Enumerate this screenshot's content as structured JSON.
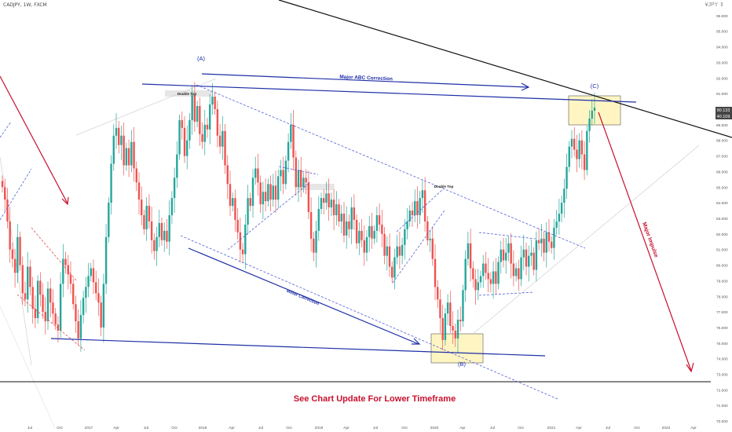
{
  "header": {
    "symbol": "CADJPY, 1W, FXCM",
    "tool_label": "¥JPY ⇕"
  },
  "price_badges": {
    "current": "90.133",
    "secondary": "40.109"
  },
  "annotations": {
    "wave_a": "(A)",
    "wave_b": "(B)",
    "wave_c": "(C)",
    "major_abc": "Major ABC Correction",
    "minor_correction": "Minor Correction",
    "major_impulse": "Major Impulse",
    "double_top_1": "Double Top",
    "double_top_2": "Double Top",
    "footer": "See Chart Update For Lower Timeframe"
  },
  "colors": {
    "bull": "#26a69a",
    "bear": "#ef5350",
    "blue": "#1f2fa8",
    "red": "#c8102e",
    "box": "#fff5c2"
  },
  "chart_data": {
    "type": "candlestick",
    "x_ticks": [
      "Jul",
      "Oct",
      "2017",
      "Apr",
      "Jul",
      "Oct",
      "2018",
      "Apr",
      "Jul",
      "Oct",
      "2019",
      "Apr",
      "Jul",
      "Oct",
      "2020",
      "Apr",
      "Jul",
      "Oct",
      "2021",
      "Apr",
      "Jul",
      "Oct",
      "2022",
      "Apr"
    ],
    "y_ticks": [
      "70.000",
      "71.000",
      "72.000",
      "73.000",
      "74.000",
      "75.000",
      "76.000",
      "77.000",
      "78.000",
      "79.000",
      "80.000",
      "81.000",
      "82.000",
      "83.000",
      "84.000",
      "85.000",
      "86.000",
      "87.000",
      "88.000",
      "89.000",
      "90.000",
      "91.000",
      "92.000",
      "93.000",
      "94.000",
      "95.000",
      "96.000"
    ],
    "ylim": [
      69.3,
      97.0
    ],
    "closes": [
      85.0,
      84.2,
      82.8,
      81.0,
      80.4,
      79.5,
      81.8,
      80.0,
      78.2,
      77.8,
      79.9,
      78.6,
      77.2,
      76.6,
      79.0,
      78.1,
      77.0,
      76.4,
      78.5,
      77.6,
      76.9,
      76.2,
      75.8,
      78.8,
      80.4,
      80.0,
      79.4,
      78.8,
      77.5,
      76.4,
      75.3,
      76.8,
      77.9,
      78.6,
      79.3,
      79.8,
      78.9,
      78.2,
      77.6,
      76.0,
      78.8,
      81.8,
      84.0,
      86.5,
      88.3,
      88.8,
      87.7,
      88.3,
      86.4,
      87.5,
      86.4,
      87.9,
      86.2,
      85.3,
      84.2,
      83.2,
      82.3,
      83.8,
      82.8,
      81.6,
      80.9,
      81.8,
      82.7,
      81.6,
      82.2,
      81.5,
      83.2,
      84.3,
      85.6,
      87.1,
      89.3,
      88.8,
      87.0,
      88.0,
      89.3,
      90.9,
      89.2,
      90.2,
      88.4,
      87.9,
      89.0,
      88.7,
      90.3,
      90.8,
      90.0,
      88.3,
      87.6,
      88.6,
      86.4,
      85.2,
      83.8,
      84.3,
      82.9,
      82.1,
      81.0,
      80.7,
      82.6,
      84.3,
      83.8,
      85.6,
      86.2,
      85.3,
      83.9,
      84.7,
      84.1,
      85.2,
      84.2,
      85.1,
      84.2,
      85.7,
      86.1,
      85.2,
      86.7,
      87.9,
      89.0,
      86.9,
      85.0,
      86.1,
      85.0,
      85.6,
      85.3,
      83.4,
      81.7,
      80.8,
      82.2,
      83.6,
      84.3,
      84.0,
      84.6,
      83.7,
      84.2,
      83.2,
      83.9,
      82.8,
      83.3,
      81.9,
      82.8,
      82.3,
      83.7,
      82.9,
      81.4,
      82.2,
      81.6,
      80.8,
      81.8,
      82.5,
      81.7,
      82.2,
      83.2,
      82.6,
      82.0,
      80.6,
      81.2,
      79.9,
      79.2,
      80.5,
      81.2,
      80.6,
      81.3,
      82.3,
      82.8,
      83.5,
      83.2,
      84.1,
      83.2,
      84.3,
      84.8,
      82.8,
      81.6,
      81.7,
      80.4,
      78.6,
      77.8,
      76.6,
      75.2,
      76.9,
      77.6,
      76.1,
      75.8,
      75.3,
      76.5,
      76.4,
      78.4,
      80.4,
      81.4,
      79.8,
      79.1,
      78.4,
      78.9,
      79.3,
      80.1,
      79.5,
      79.1,
      78.8,
      79.6,
      78.8,
      80.2,
      81.0,
      80.3,
      80.8,
      81.4,
      80.1,
      79.3,
      79.8,
      79.1,
      80.5,
      81.0,
      79.9,
      80.6,
      80.8,
      79.7,
      81.6,
      81.4,
      81.7,
      80.8,
      82.1,
      81.5,
      81.1,
      82.4,
      82.8,
      83.3,
      84.0,
      84.9,
      86.3,
      87.6,
      88.1,
      87.4,
      86.8,
      88.0,
      87.1,
      86.1,
      88.6,
      89.4,
      89.9,
      90.1
    ],
    "lines": [
      {
        "name": "Major ABC Correction",
        "points": [
          [
            0.0,
            91.9
          ],
          [
            44.0,
            90.9
          ]
        ]
      },
      {
        "name": "Major Impulse",
        "points": [
          [
            38.0,
            89.6
          ],
          [
            45.5,
            72.2
          ]
        ]
      }
    ],
    "title": "CADJPY, 1W, FXCM"
  }
}
